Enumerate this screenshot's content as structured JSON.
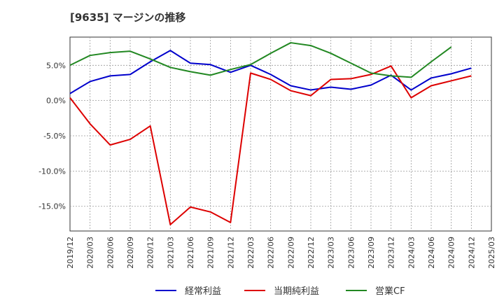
{
  "chart_data": {
    "type": "line",
    "title": "[9635]  マージンの推移",
    "x": [
      "2019/12",
      "2020/03",
      "2020/06",
      "2020/09",
      "2020/12",
      "2021/03",
      "2021/06",
      "2021/09",
      "2021/12",
      "2022/03",
      "2022/06",
      "2022/09",
      "2022/12",
      "2023/03",
      "2023/06",
      "2023/09",
      "2023/12",
      "2024/03",
      "2024/06",
      "2024/09",
      "2024/12",
      "2025/03"
    ],
    "xticks": [
      "2019/12",
      "2020/03",
      "2020/06",
      "2020/09",
      "2020/12",
      "2021/03",
      "2021/06",
      "2021/09",
      "2021/12",
      "2022/03",
      "2022/06",
      "2022/09",
      "2022/12",
      "2023/03",
      "2023/06",
      "2023/09",
      "2023/12",
      "2024/03",
      "2024/06",
      "2024/09",
      "2024/12",
      "2025/03"
    ],
    "ylim": [
      -18.5,
      9.0
    ],
    "yticks": [
      5.0,
      0.0,
      -5.0,
      -10.0,
      -15.0
    ],
    "ytick_labels": [
      "5.0%",
      "0.0%",
      "-5.0%",
      "-10.0%",
      "-15.0%"
    ],
    "grid": true,
    "legend_position": "bottom",
    "series": [
      {
        "name": "経常利益",
        "color": "#0000cc",
        "values": [
          1.0,
          2.7,
          3.5,
          3.7,
          5.5,
          7.1,
          5.3,
          5.1,
          4.0,
          5.0,
          3.7,
          2.1,
          1.5,
          1.9,
          1.6,
          2.2,
          3.6,
          1.5,
          3.2,
          3.8,
          4.6,
          null
        ]
      },
      {
        "name": "当期純利益",
        "color": "#dd0000",
        "values": [
          0.4,
          -3.3,
          -6.3,
          -5.5,
          -3.6,
          -17.6,
          -15.1,
          -15.8,
          -17.3,
          3.9,
          3.0,
          1.4,
          0.7,
          3.0,
          3.1,
          3.7,
          4.9,
          0.4,
          2.1,
          2.8,
          3.5,
          null
        ]
      },
      {
        "name": "営業CF",
        "color": "#228822",
        "values": [
          5.0,
          6.4,
          6.8,
          7.0,
          5.9,
          4.7,
          4.1,
          3.6,
          4.4,
          5.1,
          6.7,
          8.2,
          7.8,
          6.7,
          5.3,
          3.9,
          3.5,
          3.3,
          5.5,
          7.6,
          null,
          null
        ]
      }
    ]
  }
}
